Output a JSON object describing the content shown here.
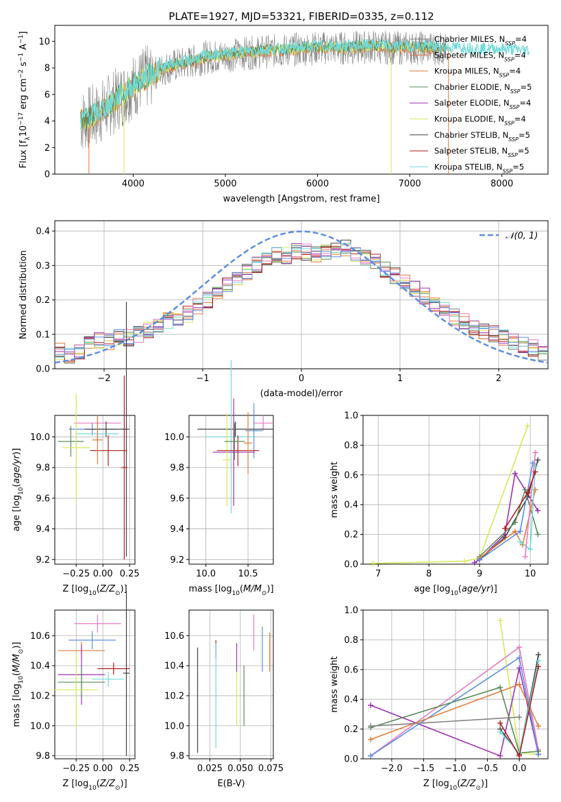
{
  "figure": {
    "title": "PLATE=1927, MJD=53321, FIBERID=0335, z=0.112"
  },
  "colors": {
    "chabrier_miles": "#808080",
    "salpeter_miles": "#e8753a",
    "kroupa_miles": "#e07b39",
    "chabrier_elodie": "#5a8a5a",
    "salpeter_elodie": "#9b30b0",
    "kroupa_elodie": "#d6e85a",
    "chabrier_stelib": "#404040",
    "salpeter_stelib": "#b01c1c",
    "kroupa_stelib": "#6fdada",
    "pink": "#e87ac0",
    "blue": "#5b8de0",
    "gaussian": "#5b8de0"
  },
  "chart_data": [
    {
      "id": "spectrum",
      "type": "line",
      "title": "PLATE=1927, MJD=53321, FIBERID=0335, z=0.112",
      "xlabel": "wavelength [Angstrom, rest frame]",
      "ylabel": "Flux [f_λ 10^-17 erg cm^-2 s^-1 A^-1]",
      "xlim": [
        3150,
        8500
      ],
      "ylim": [
        0,
        11.2
      ],
      "xticks": [
        "4000",
        "5000",
        "6000",
        "7000",
        "8000"
      ],
      "yticks": [
        "0",
        "2",
        "4",
        "6",
        "8",
        "10"
      ],
      "legend_position": "top-right",
      "legend": [
        "Chabrier MILES, N_SSP=4",
        "Salpeter MILES, N_SSP=4",
        "Kroupa MILES, N_SSP=4",
        "Chabrier ELODIE, N_SSP=5",
        "Salpeter ELODIE, N_SSP=4",
        "Kroupa ELODIE, N_SSP=4",
        "Chabrier STELIB, N_SSP=5",
        "Salpeter STELIB, N_SSP=5",
        "Kroupa STELIB, N_SSP=5"
      ],
      "model_x": [
        3430,
        3600,
        3800,
        4000,
        4200,
        4400,
        4600,
        4800,
        5000,
        5200,
        5400,
        5600,
        5800,
        6000,
        6200,
        6400,
        6600,
        6800,
        7000,
        7200,
        7400,
        7600,
        7800,
        8000,
        8200,
        8300
      ],
      "model_y": [
        4.0,
        4.4,
        5.5,
        6.6,
        7.5,
        8.1,
        8.4,
        8.8,
        8.9,
        9.1,
        9.2,
        9.3,
        9.4,
        9.5,
        9.5,
        9.5,
        9.6,
        9.5,
        9.5,
        9.5,
        9.4,
        9.4,
        9.3,
        9.3,
        9.2,
        9.2
      ]
    },
    {
      "id": "residuals",
      "type": "histogram",
      "xlabel": "(data-model)/error",
      "ylabel": "Normed distribution",
      "xlim": [
        -2.5,
        2.5
      ],
      "ylim": [
        0,
        0.43
      ],
      "xticks": [
        "−2",
        "−1",
        "0",
        "1",
        "2"
      ],
      "yticks": [
        "0.0",
        "0.1",
        "0.2",
        "0.3",
        "0.4"
      ],
      "legend_label": "𝒩(0, 1)",
      "legend_position": "top-right",
      "bin_edges_start": -2.5,
      "bin_width": 0.1,
      "values": [
        0.05,
        0.04,
        0.05,
        0.07,
        0.08,
        0.08,
        0.09,
        0.09,
        0.1,
        0.11,
        0.12,
        0.14,
        0.15,
        0.16,
        0.18,
        0.2,
        0.22,
        0.24,
        0.26,
        0.28,
        0.3,
        0.32,
        0.33,
        0.33,
        0.34,
        0.34,
        0.33,
        0.34,
        0.35,
        0.35,
        0.33,
        0.32,
        0.31,
        0.29,
        0.27,
        0.25,
        0.23,
        0.21,
        0.19,
        0.17,
        0.15,
        0.14,
        0.12,
        0.11,
        0.1,
        0.09,
        0.08,
        0.07,
        0.06,
        0.05
      ]
    },
    {
      "id": "age_vs_Z",
      "type": "errorbar",
      "xlabel": "Z [log10(Z/Z⊙)]",
      "ylabel": "age  [log10(age/yr)]",
      "xlim": [
        -0.45,
        0.3
      ],
      "ylim": [
        9.17,
        10.14
      ],
      "xticks": [
        "−0.25",
        "0.00",
        "0.25"
      ],
      "yticks": [
        "9.2",
        "9.4",
        "9.6",
        "9.8",
        "10.0"
      ],
      "points": [
        {
          "x": -0.05,
          "y": 10.09,
          "xerr": 0.22,
          "yerr": 0.04,
          "c": "pink"
        },
        {
          "x": -0.1,
          "y": 10.05,
          "xerr": 0.22,
          "yerr": 0.04,
          "c": "blue"
        },
        {
          "x": 0.22,
          "y": 10.05,
          "xerr": 0.03,
          "yerr": 0.83,
          "c": "chabrier_stelib"
        },
        {
          "x": 0.03,
          "y": 10.05,
          "xerr": 0.2,
          "yerr": 0.05,
          "c": "chabrier_stelib"
        },
        {
          "x": -0.05,
          "y": 10.02,
          "xerr": 0.2,
          "yerr": 0.05,
          "c": "kroupa_stelib"
        },
        {
          "x": -0.3,
          "y": 9.97,
          "xerr": 0.12,
          "yerr": 0.1,
          "c": "chabrier_elodie"
        },
        {
          "x": -0.25,
          "y": 9.93,
          "xerr": 0.13,
          "yerr": 0.35,
          "c": "kroupa_elodie"
        },
        {
          "x": 0.05,
          "y": 9.91,
          "xerr": 0.17,
          "yerr": 0.1,
          "c": "salpeter_stelib"
        },
        {
          "x": -0.05,
          "y": 9.98,
          "xerr": 0.05,
          "yerr": 0.16,
          "c": "kroupa_miles"
        },
        {
          "x": 0.2,
          "y": 9.8,
          "xerr": 0.03,
          "yerr": 0.6,
          "c": "salpeter_stelib"
        }
      ]
    },
    {
      "id": "age_vs_mass",
      "type": "errorbar",
      "xlabel": "mass [log10(M/M⊙)]",
      "ylabel": "",
      "xlim": [
        9.8,
        10.8
      ],
      "ylim": [
        9.17,
        10.14
      ],
      "xticks": [
        "10.0",
        "10.5"
      ],
      "yticks": [
        "9.2",
        "9.4",
        "9.6",
        "9.8",
        "10.0"
      ],
      "points": [
        {
          "x": 10.68,
          "y": 10.09,
          "xerr": 0.12,
          "yerr": 0.05,
          "c": "pink"
        },
        {
          "x": 10.57,
          "y": 10.04,
          "xerr": 0.1,
          "yerr": 0.18,
          "c": "blue"
        },
        {
          "x": 10.35,
          "y": 10.05,
          "xerr": 0.45,
          "yerr": 0.05,
          "c": "chabrier_stelib"
        },
        {
          "x": 10.3,
          "y": 10.0,
          "xerr": 0.3,
          "yerr": 0.5,
          "c": "kroupa_stelib"
        },
        {
          "x": 10.33,
          "y": 9.9,
          "xerr": 0.25,
          "yerr": 0.35,
          "c": "salpeter_elodie"
        },
        {
          "x": 10.25,
          "y": 9.85,
          "xerr": 0.05,
          "yerr": 0.3,
          "c": "kroupa_elodie"
        },
        {
          "x": 10.38,
          "y": 9.91,
          "xerr": 0.25,
          "yerr": 0.1,
          "c": "salpeter_stelib"
        },
        {
          "x": 10.34,
          "y": 9.97,
          "xerr": 0.12,
          "yerr": 0.12,
          "c": "chabrier_elodie"
        },
        {
          "x": 10.5,
          "y": 9.96,
          "xerr": 0.05,
          "yerr": 0.2,
          "c": "kroupa_miles"
        }
      ]
    },
    {
      "id": "massweight_vs_age",
      "type": "line",
      "xlabel": "age  [log10(age/yr)]",
      "ylabel": "mass weight",
      "xlim": [
        6.7,
        10.35
      ],
      "ylim": [
        0,
        1.0
      ],
      "xticks": [
        "7",
        "8",
        "9",
        "10"
      ],
      "yticks": [
        "0.0",
        "0.2",
        "0.4",
        "0.6",
        "0.8",
        "1.0"
      ],
      "series": [
        {
          "c": "kroupa_elodie",
          "x": [
            6.9,
            8.7,
            9.0,
            9.95
          ],
          "y": [
            0.005,
            0.02,
            0.04,
            0.93
          ]
        },
        {
          "c": "salpeter_elodie",
          "x": [
            8.9,
            9.0,
            9.5,
            9.7,
            10.15
          ],
          "y": [
            0.01,
            0.03,
            0.2,
            0.61,
            0.36
          ]
        },
        {
          "c": "chabrier_stelib",
          "x": [
            9.0,
            9.5,
            9.95,
            10.15
          ],
          "y": [
            0.03,
            0.18,
            0.45,
            0.7
          ]
        },
        {
          "c": "chabrier_elodie",
          "x": [
            9.0,
            9.7,
            9.9,
            10.15
          ],
          "y": [
            0.05,
            0.28,
            0.5,
            0.2
          ]
        },
        {
          "c": "kroupa_miles",
          "x": [
            9.0,
            9.7,
            9.85,
            10.1
          ],
          "y": [
            0.04,
            0.22,
            0.13,
            0.5
          ]
        },
        {
          "c": "blue",
          "x": [
            9.0,
            9.8,
            10.05
          ],
          "y": [
            0.03,
            0.22,
            0.68
          ]
        },
        {
          "c": "kroupa_stelib",
          "x": [
            9.8,
            10.0,
            10.1
          ],
          "y": [
            0.15,
            0.1,
            0.66
          ]
        },
        {
          "c": "pink",
          "x": [
            9.9,
            10.1
          ],
          "y": [
            0.05,
            0.75
          ]
        },
        {
          "c": "salpeter_stelib",
          "x": [
            9.5,
            9.95,
            10.1
          ],
          "y": [
            0.24,
            0.48,
            0.62
          ]
        }
      ]
    },
    {
      "id": "mass_vs_Z",
      "type": "errorbar",
      "xlabel": "Z [log10(Z/Z⊙)]",
      "ylabel": "mass [log10(M/M⊙)]",
      "xlim": [
        -0.45,
        0.3
      ],
      "ylim": [
        9.78,
        10.77
      ],
      "xticks": [
        "−0.25",
        "0.00",
        "0.25"
      ],
      "yticks": [
        "9.8",
        "10.0",
        "10.2",
        "10.4",
        "10.6"
      ],
      "points": [
        {
          "x": -0.05,
          "y": 10.68,
          "xerr": 0.22,
          "yerr": 0.06,
          "c": "pink"
        },
        {
          "x": -0.1,
          "y": 10.57,
          "xerr": 0.22,
          "yerr": 0.06,
          "c": "blue"
        },
        {
          "x": -0.2,
          "y": 10.5,
          "xerr": 0.22,
          "yerr": 0.06,
          "c": "kroupa_miles"
        },
        {
          "x": 0.1,
          "y": 10.38,
          "xerr": 0.15,
          "yerr": 0.04,
          "c": "salpeter_stelib"
        },
        {
          "x": -0.2,
          "y": 10.34,
          "xerr": 0.22,
          "yerr": 0.2,
          "c": "salpeter_elodie"
        },
        {
          "x": 0.05,
          "y": 10.31,
          "xerr": 0.15,
          "yerr": 0.05,
          "c": "kroupa_stelib"
        },
        {
          "x": -0.2,
          "y": 10.29,
          "xerr": 0.22,
          "yerr": 0.1,
          "c": "chabrier_elodie"
        },
        {
          "x": -0.25,
          "y": 10.24,
          "xerr": 0.2,
          "yerr": 0.25,
          "c": "kroupa_elodie"
        },
        {
          "x": 0.22,
          "y": 10.35,
          "xerr": 0.03,
          "yerr": 0.55,
          "c": "chabrier_stelib"
        }
      ]
    },
    {
      "id": "mass_vs_ebv",
      "type": "errorbar",
      "xlabel": "E(B-V)",
      "ylabel": "",
      "xlim": [
        0.008,
        0.077
      ],
      "ylim": [
        9.78,
        10.77
      ],
      "xticks": [
        "0.025",
        "0.050",
        "0.075"
      ],
      "yticks": [
        "9.8",
        "10.0",
        "10.2",
        "10.4",
        "10.6"
      ],
      "points": [
        {
          "x": 0.061,
          "y": 10.62,
          "yerr": 0.12,
          "c": "pink"
        },
        {
          "x": 0.068,
          "y": 10.51,
          "yerr": 0.15,
          "c": "blue"
        },
        {
          "x": 0.074,
          "y": 10.49,
          "yerr": 0.13,
          "c": "kroupa_miles"
        },
        {
          "x": 0.03,
          "y": 10.51,
          "yerr": 0.06,
          "c": "salpeter_stelib"
        },
        {
          "x": 0.047,
          "y": 10.45,
          "yerr": 0.1,
          "c": "salpeter_elodie"
        },
        {
          "x": 0.053,
          "y": 10.2,
          "yerr": 0.2,
          "c": "chabrier_elodie"
        },
        {
          "x": 0.047,
          "y": 10.18,
          "yerr": 0.18,
          "c": "kroupa_elodie"
        },
        {
          "x": 0.03,
          "y": 10.2,
          "yerr": 0.35,
          "c": "kroupa_stelib"
        },
        {
          "x": 0.015,
          "y": 10.17,
          "yerr": 0.35,
          "c": "chabrier_stelib"
        }
      ]
    },
    {
      "id": "massweight_vs_Z",
      "type": "line",
      "xlabel": "Z [log10(Z/Z⊙)]",
      "ylabel": "mass weight",
      "xlim": [
        -2.45,
        0.45
      ],
      "ylim": [
        0,
        1.0
      ],
      "xticks": [
        "−2.0",
        "−1.5",
        "−1.0",
        "−0.5",
        "0.0"
      ],
      "yticks": [
        "0.0",
        "0.2",
        "0.4",
        "0.6",
        "0.8",
        "1.0"
      ],
      "series": [
        {
          "c": "kroupa_elodie",
          "x": [
            -0.3,
            0.0,
            0.3
          ],
          "y": [
            0.93,
            0.04,
            0.03
          ]
        },
        {
          "c": "salpeter_elodie",
          "x": [
            -2.33,
            -0.3,
            0.0,
            0.3
          ],
          "y": [
            0.36,
            0.02,
            0.61,
            0.03
          ]
        },
        {
          "c": "pink",
          "x": [
            -2.33,
            0.0,
            0.3
          ],
          "y": [
            0.02,
            0.75,
            0.06
          ]
        },
        {
          "c": "blue",
          "x": [
            -2.33,
            0.0,
            0.3
          ],
          "y": [
            0.02,
            0.68,
            0.03
          ]
        },
        {
          "c": "kroupa_miles",
          "x": [
            -2.33,
            0.0,
            0.3
          ],
          "y": [
            0.13,
            0.5,
            0.22
          ]
        },
        {
          "c": "chabrier_elodie",
          "x": [
            -2.33,
            -0.3,
            0.0,
            0.3
          ],
          "y": [
            0.21,
            0.48,
            0.04,
            0.05
          ]
        },
        {
          "c": "chabrier_stelib",
          "x": [
            -0.3,
            0.0,
            0.3
          ],
          "y": [
            0.2,
            0.03,
            0.7
          ]
        },
        {
          "c": "kroupa_stelib",
          "x": [
            -0.3,
            0.0,
            0.3
          ],
          "y": [
            0.18,
            0.04,
            0.66
          ]
        },
        {
          "c": "salpeter_stelib",
          "x": [
            -0.3,
            0.0,
            0.3
          ],
          "y": [
            0.24,
            0.02,
            0.62
          ]
        },
        {
          "c": "chabrier_miles",
          "x": [
            -2.33,
            0.0
          ],
          "y": [
            0.22,
            0.28
          ]
        }
      ]
    }
  ]
}
